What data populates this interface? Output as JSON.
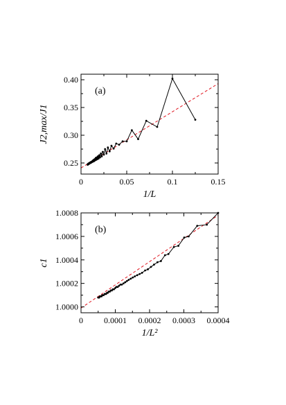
{
  "chart_data": [
    {
      "type": "line",
      "panel_label": "(a)",
      "xlabel": "1/L",
      "ylabel": "J2,max/J1",
      "xlim": [
        0,
        0.15
      ],
      "ylim": [
        0.23,
        0.41
      ],
      "xticks": [
        0,
        0.05,
        0.1,
        0.15
      ],
      "xtick_labels": [
        "0",
        "0.05",
        "0.1",
        "0.15"
      ],
      "yticks": [
        0.25,
        0.3,
        0.35,
        0.4
      ],
      "ytick_labels": [
        "0.25",
        "0.30",
        "0.35",
        "0.40"
      ],
      "series": [
        {
          "style": "data",
          "x": [
            0.125,
            0.1,
            0.0833,
            0.0714,
            0.0625,
            0.0556,
            0.05,
            0.0455,
            0.0417,
            0.0385,
            0.0357,
            0.0333,
            0.0313,
            0.0294,
            0.0278,
            0.0263,
            0.025,
            0.0238,
            0.0227,
            0.0217,
            0.0208,
            0.02,
            0.0192,
            0.0185,
            0.0179,
            0.0172,
            0.0167,
            0.0161,
            0.0156,
            0.0152,
            0.0147,
            0.0143,
            0.0139,
            0.0135,
            0.0132,
            0.0128,
            0.0125,
            0.0122,
            0.0119,
            0.0116,
            0.0114,
            0.0111,
            0.0109,
            0.0106,
            0.0104,
            0.0102,
            0.01,
            0.0098,
            0.0096,
            0.0094,
            0.0093,
            0.0091,
            0.0089,
            0.0088,
            0.0086,
            0.0085,
            0.0083,
            0.0082,
            0.0081,
            0.0079,
            0.0078,
            0.0077,
            0.0076,
            0.0075,
            0.0074,
            0.0073,
            0.0072
          ],
          "y": [
            0.328,
            0.402,
            0.315,
            0.326,
            0.293,
            0.309,
            0.289,
            0.289,
            0.283,
            0.285,
            0.276,
            0.281,
            0.271,
            0.278,
            0.267,
            0.275,
            0.265,
            0.27,
            0.262,
            0.267,
            0.26,
            0.264,
            0.258,
            0.262,
            0.257,
            0.26,
            0.256,
            0.259,
            0.255,
            0.257,
            0.254,
            0.256,
            0.253,
            0.255,
            0.253,
            0.254,
            0.252,
            0.253,
            0.252,
            0.252,
            0.251,
            0.252,
            0.251,
            0.251,
            0.25,
            0.251,
            0.25,
            0.25,
            0.25,
            0.25,
            0.249,
            0.25,
            0.249,
            0.249,
            0.249,
            0.249,
            0.248,
            0.249,
            0.248,
            0.248,
            0.248,
            0.248,
            0.248,
            0.247,
            0.248,
            0.247,
            0.247
          ]
        },
        {
          "style": "fit",
          "x": [
            0,
            0.15
          ],
          "y": [
            0.241,
            0.393
          ]
        }
      ]
    },
    {
      "type": "line",
      "panel_label": "(b)",
      "xlabel": "1/L²",
      "ylabel": "c1",
      "xlim": [
        0,
        0.0004
      ],
      "ylim": [
        0.99995,
        1.0008
      ],
      "xticks": [
        0,
        0.0001,
        0.0002,
        0.0003,
        0.0004
      ],
      "xtick_labels": [
        "0",
        "0.0001",
        "0.0002",
        "0.0003",
        "0.0004"
      ],
      "yticks": [
        1.0,
        1.0002,
        1.0004,
        1.0006,
        1.0008
      ],
      "ytick_labels": [
        "1.0000",
        "1.0002",
        "1.0004",
        "1.0006",
        "1.0008"
      ],
      "series": [
        {
          "style": "data",
          "x": [
            0.0004,
            0.000367,
            0.000339,
            0.000314,
            0.000301,
            0.000284,
            0.000271,
            0.000255,
            0.000245,
            0.000233,
            0.000223,
            0.000213,
            0.000204,
            0.000195,
            0.000187,
            0.000178,
            0.000171,
            0.000164,
            0.000157,
            0.000151,
            0.000145,
            0.000139,
            0.000134,
            0.000129,
            0.000124,
            0.000119,
            0.000115,
            0.000111,
            0.000107,
            0.000103,
            0.0001,
            9.6e-05,
            9.3e-05,
            9e-05,
            8.7e-05,
            8.4e-05,
            8.1e-05,
            7.8e-05,
            7.6e-05,
            7.3e-05,
            7.1e-05,
            6.9e-05,
            6.6e-05,
            6.4e-05,
            6.2e-05,
            6e-05,
            5.8e-05,
            5.7e-05,
            5.5e-05,
            5.3e-05,
            5.2e-05,
            5e-05
          ],
          "y": [
            1.0008,
            1.0007,
            1.00069,
            1.0006,
            1.00059,
            1.00052,
            1.00051,
            1.00045,
            1.00044,
            1.00039,
            1.00038,
            1.00036,
            1.00034,
            1.00032,
            1.00031,
            1.00029,
            1.00028,
            1.00027,
            1.00026,
            1.00025,
            1.00024,
            1.00023,
            1.00022,
            1.00021,
            1.0002,
            1.00019,
            1.00019,
            1.00018,
            1.00017,
            1.00017,
            1.00016,
            1.00015,
            1.00015,
            1.00014,
            1.00014,
            1.00013,
            1.00013,
            1.00012,
            1.00012,
            1.00011,
            1.00011,
            1.00011,
            1.0001,
            1.0001,
            1.0001,
            1.00009,
            1.00009,
            1.00009,
            1.00009,
            1.00008,
            1.00008,
            1.00008
          ]
        },
        {
          "style": "fit",
          "x": [
            0,
            0.0004
          ],
          "y": [
            0.99999,
            1.00078
          ]
        }
      ]
    }
  ]
}
